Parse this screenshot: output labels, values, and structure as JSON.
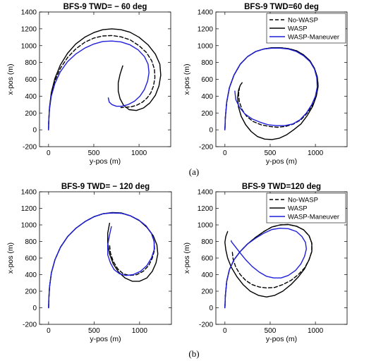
{
  "panel_labels": [
    "(a)",
    "(b)"
  ],
  "colors": {
    "No-WASP": "#000000",
    "WASP": "#000000",
    "WASP-Maneuver": "#1f1fdc"
  },
  "chart_data": [
    {
      "type": "line",
      "title": "BFS-9  TWD= − 60 deg",
      "xlabel": "y-pos (m)",
      "ylabel": "x-pos (m)",
      "xlim": [
        -100,
        1350
      ],
      "ylim": [
        -200,
        1400
      ],
      "xticks": [
        0,
        500,
        1000
      ],
      "yticks": [
        -200,
        0,
        200,
        400,
        600,
        800,
        1000,
        1200,
        1400
      ],
      "legend": null,
      "series": [
        {
          "name": "No-WASP",
          "style": "dashed",
          "x": [
            0,
            2,
            10,
            30,
            70,
            130,
            210,
            300,
            400,
            500,
            600,
            700,
            800,
            900,
            1000,
            1080,
            1140,
            1170,
            1175,
            1160,
            1130,
            1090,
            1040,
            980,
            920,
            860,
            800
          ],
          "y": [
            0,
            100,
            250,
            420,
            580,
            730,
            860,
            960,
            1040,
            1090,
            1115,
            1120,
            1105,
            1070,
            1000,
            920,
            820,
            720,
            620,
            520,
            440,
            380,
            330,
            295,
            275,
            268,
            265
          ]
        },
        {
          "name": "WASP",
          "style": "solid",
          "x": [
            0,
            2,
            10,
            30,
            70,
            130,
            210,
            300,
            400,
            500,
            600,
            700,
            800,
            900,
            1000,
            1100,
            1180,
            1230,
            1240,
            1220,
            1180,
            1120,
            1050,
            970,
            890,
            830,
            790,
            770,
            770,
            790,
            820
          ],
          "y": [
            0,
            100,
            260,
            440,
            610,
            770,
            910,
            1020,
            1100,
            1155,
            1190,
            1200,
            1190,
            1160,
            1100,
            1010,
            900,
            780,
            650,
            520,
            410,
            320,
            260,
            230,
            240,
            290,
            370,
            460,
            560,
            660,
            760
          ]
        },
        {
          "name": "WASP-Maneuver",
          "style": "solid",
          "x": [
            0,
            2,
            10,
            30,
            70,
            130,
            210,
            300,
            400,
            500,
            600,
            700,
            800,
            900,
            990,
            1060,
            1100,
            1110,
            1095,
            1060,
            1010,
            950,
            880,
            810,
            750,
            700,
            670,
            660
          ],
          "y": [
            0,
            100,
            240,
            400,
            550,
            690,
            810,
            900,
            970,
            1020,
            1050,
            1055,
            1045,
            1010,
            950,
            870,
            780,
            680,
            580,
            480,
            400,
            340,
            300,
            280,
            280,
            300,
            330,
            380
          ]
        }
      ]
    },
    {
      "type": "line",
      "title": "BFS-9  TWD=60 deg",
      "xlabel": "y-pos (m)",
      "ylabel": "x-pos (m)",
      "xlim": [
        -100,
        1350
      ],
      "ylim": [
        -200,
        1400
      ],
      "xticks": [
        0,
        500,
        1000
      ],
      "yticks": [
        -200,
        0,
        200,
        400,
        600,
        800,
        1000,
        1200,
        1400
      ],
      "legend": "top-right",
      "series": [
        {
          "name": "No-WASP",
          "style": "dashed",
          "x": [
            0,
            5,
            20,
            50,
            100,
            170,
            250,
            340,
            430,
            520,
            610,
            700,
            790,
            870,
            940,
            990,
            1020,
            1030,
            1010,
            970,
            910,
            840,
            760,
            670,
            580,
            490,
            400,
            310,
            240,
            190,
            160,
            150,
            160
          ],
          "y": [
            0,
            150,
            330,
            500,
            650,
            780,
            870,
            930,
            960,
            975,
            975,
            965,
            940,
            890,
            820,
            730,
            630,
            520,
            410,
            300,
            200,
            120,
            70,
            40,
            30,
            40,
            60,
            100,
            160,
            240,
            330,
            420,
            500
          ]
        },
        {
          "name": "WASP",
          "style": "solid",
          "x": [
            0,
            5,
            20,
            50,
            100,
            170,
            250,
            340,
            430,
            520,
            610,
            700,
            790,
            870,
            940,
            990,
            1020,
            1030,
            1010,
            970,
            910,
            840,
            760,
            680,
            600,
            520,
            440,
            360,
            290,
            230,
            180,
            150,
            140,
            150,
            170,
            190
          ],
          "y": [
            0,
            150,
            330,
            500,
            650,
            780,
            870,
            930,
            960,
            975,
            975,
            965,
            940,
            890,
            820,
            730,
            630,
            520,
            400,
            280,
            170,
            70,
            0,
            -60,
            -100,
            -115,
            -110,
            -80,
            -20,
            60,
            160,
            270,
            380,
            470,
            530,
            560
          ]
        },
        {
          "name": "WASP-Maneuver",
          "style": "solid",
          "x": [
            0,
            5,
            20,
            50,
            100,
            170,
            250,
            340,
            430,
            520,
            610,
            700,
            790,
            870,
            940,
            990,
            1015,
            1020,
            1000,
            960,
            900,
            830,
            750,
            660,
            570,
            480,
            390,
            300,
            220,
            160,
            120,
            110
          ],
          "y": [
            0,
            150,
            330,
            500,
            650,
            780,
            870,
            930,
            960,
            970,
            970,
            960,
            930,
            880,
            810,
            720,
            620,
            510,
            400,
            300,
            200,
            120,
            70,
            50,
            50,
            60,
            90,
            130,
            190,
            270,
            360,
            460
          ]
        }
      ]
    },
    {
      "type": "line",
      "title": "BFS-9  TWD= − 120 deg",
      "xlabel": "y-pos (m)",
      "ylabel": "x-pos (m)",
      "xlim": [
        -100,
        1350
      ],
      "ylim": [
        -200,
        1400
      ],
      "xticks": [
        0,
        500,
        1000
      ],
      "yticks": [
        -200,
        0,
        200,
        400,
        600,
        800,
        1000,
        1200,
        1400
      ],
      "legend": null,
      "series": [
        {
          "name": "No-WASP",
          "style": "dashed",
          "x": [
            0,
            2,
            10,
            30,
            70,
            130,
            210,
            300,
            400,
            500,
            600,
            700,
            800,
            900,
            990,
            1070,
            1130,
            1160,
            1165,
            1140,
            1100,
            1040,
            970,
            890,
            820,
            760,
            710,
            680,
            670
          ],
          "y": [
            0,
            100,
            250,
            420,
            580,
            730,
            860,
            960,
            1040,
            1100,
            1135,
            1145,
            1140,
            1110,
            1060,
            990,
            900,
            800,
            700,
            600,
            510,
            440,
            400,
            390,
            410,
            470,
            560,
            660,
            760
          ]
        },
        {
          "name": "WASP",
          "style": "solid",
          "x": [
            0,
            2,
            10,
            30,
            70,
            130,
            210,
            300,
            400,
            500,
            600,
            700,
            800,
            900,
            1000,
            1080,
            1150,
            1190,
            1200,
            1180,
            1140,
            1080,
            1000,
            920,
            840,
            770,
            710,
            670,
            650,
            650,
            670
          ],
          "y": [
            0,
            100,
            250,
            420,
            580,
            730,
            860,
            960,
            1040,
            1100,
            1135,
            1150,
            1145,
            1110,
            1050,
            970,
            870,
            760,
            650,
            540,
            440,
            360,
            320,
            320,
            360,
            430,
            530,
            650,
            780,
            900,
            1020
          ]
        },
        {
          "name": "WASP-Maneuver",
          "style": "solid",
          "x": [
            0,
            2,
            10,
            30,
            70,
            130,
            210,
            300,
            400,
            500,
            600,
            700,
            800,
            900,
            990,
            1070,
            1130,
            1160,
            1160,
            1130,
            1080,
            1010,
            930,
            850,
            780,
            720,
            680,
            650,
            650,
            670,
            690
          ],
          "y": [
            0,
            100,
            250,
            420,
            580,
            730,
            860,
            960,
            1040,
            1100,
            1135,
            1145,
            1140,
            1110,
            1060,
            990,
            900,
            800,
            700,
            600,
            510,
            440,
            400,
            390,
            410,
            460,
            540,
            640,
            760,
            880,
            980
          ]
        }
      ]
    },
    {
      "type": "line",
      "title": "BFS-9  TWD=120 deg",
      "xlabel": "y-pos (m)",
      "ylabel": "x-pos (m)",
      "xlim": [
        -100,
        1350
      ],
      "ylim": [
        -200,
        1400
      ],
      "xticks": [
        0,
        500,
        1000
      ],
      "yticks": [
        -200,
        0,
        200,
        400,
        600,
        800,
        1000,
        1200,
        1400
      ],
      "legend": "top-right",
      "series": [
        {
          "name": "No-WASP",
          "style": "dashed",
          "x": [
            0,
            5,
            20,
            50,
            100,
            170,
            250,
            340,
            430,
            520,
            610,
            700,
            790,
            870,
            930,
            960,
            960,
            930,
            880,
            810,
            730,
            640,
            550,
            460,
            380,
            300,
            230,
            170,
            120,
            90,
            80
          ],
          "y": [
            0,
            150,
            320,
            460,
            580,
            680,
            770,
            850,
            920,
            975,
            1000,
            1005,
            985,
            940,
            870,
            780,
            680,
            580,
            480,
            400,
            330,
            280,
            245,
            240,
            250,
            280,
            330,
            400,
            490,
            590,
            690
          ]
        },
        {
          "name": "WASP",
          "style": "solid",
          "x": [
            0,
            5,
            20,
            50,
            100,
            170,
            250,
            340,
            430,
            520,
            610,
            700,
            790,
            870,
            930,
            960,
            960,
            930,
            880,
            810,
            730,
            640,
            550,
            460,
            370,
            280,
            200,
            130,
            70,
            30,
            10,
            0,
            10,
            30
          ],
          "y": [
            0,
            150,
            320,
            460,
            580,
            680,
            770,
            850,
            920,
            975,
            1000,
            1005,
            985,
            940,
            870,
            780,
            680,
            580,
            470,
            370,
            280,
            200,
            150,
            130,
            150,
            200,
            280,
            380,
            490,
            600,
            700,
            790,
            860,
            920
          ]
        },
        {
          "name": "WASP-Maneuver",
          "style": "solid",
          "x": [
            0,
            5,
            20,
            50,
            100,
            170,
            250,
            340,
            430,
            520,
            610,
            700,
            790,
            850,
            890,
            900,
            880,
            840,
            780,
            700,
            620,
            540,
            460,
            380,
            300,
            230,
            170,
            120,
            85,
            70,
            70
          ],
          "y": [
            0,
            150,
            320,
            460,
            580,
            680,
            770,
            840,
            900,
            945,
            960,
            955,
            920,
            860,
            790,
            710,
            620,
            530,
            450,
            390,
            360,
            360,
            380,
            430,
            500,
            580,
            660,
            730,
            780,
            800,
            810
          ]
        }
      ]
    }
  ]
}
